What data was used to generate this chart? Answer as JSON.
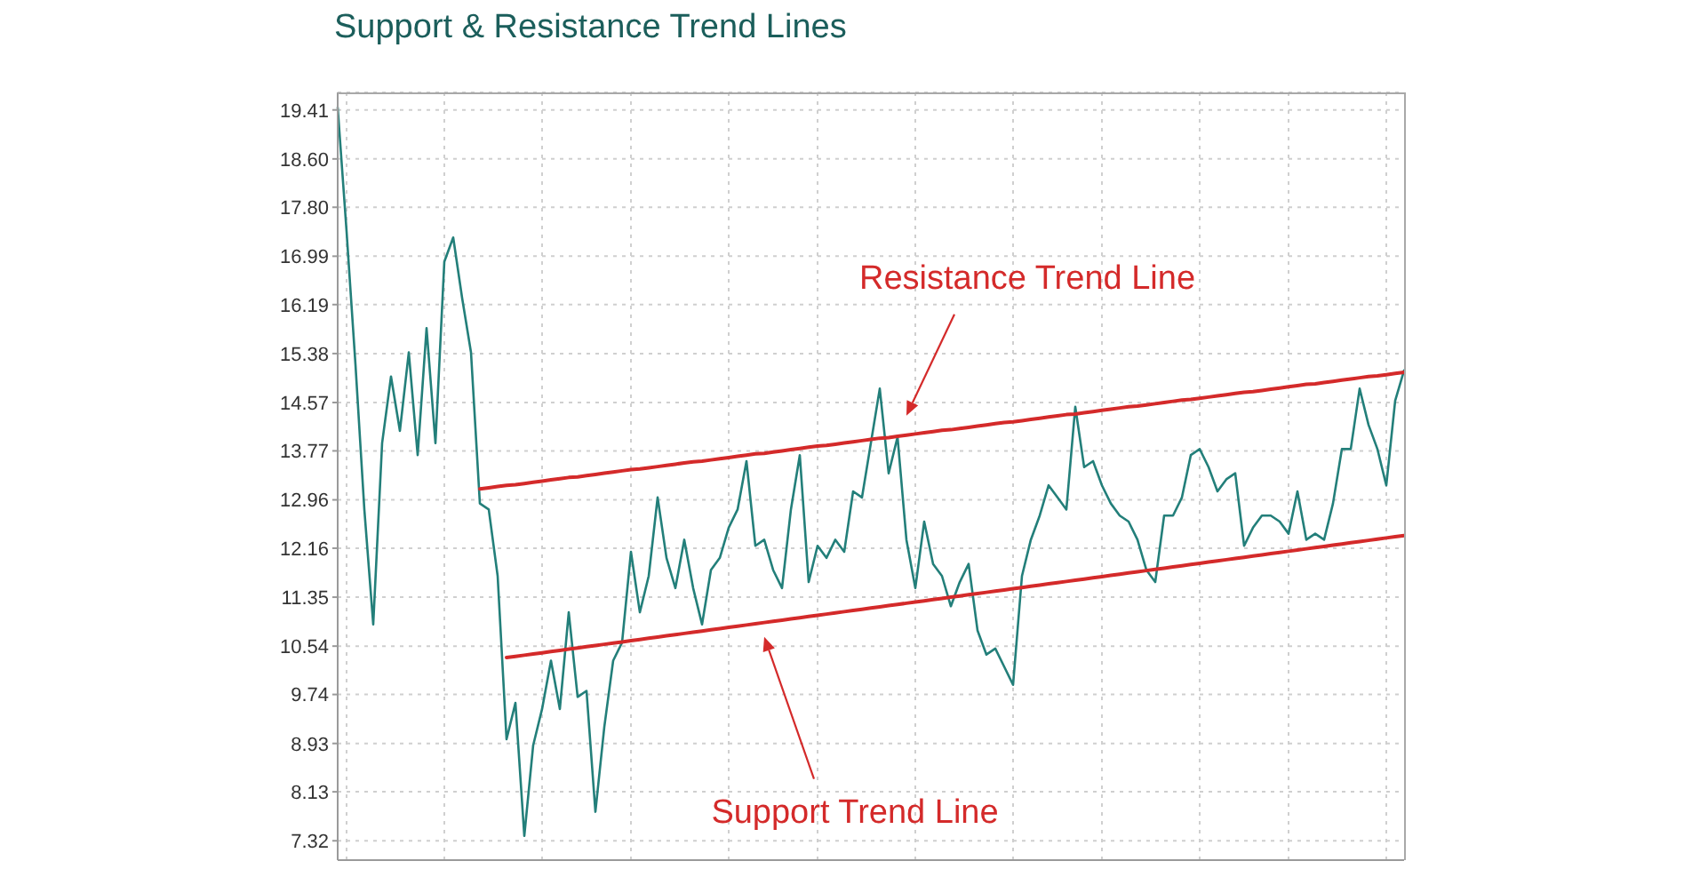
{
  "chart_data": {
    "type": "line",
    "title": "Support & Resistance Trend Lines",
    "categories": [
      null,
      null,
      null,
      null,
      null,
      null,
      null,
      null,
      null,
      null,
      null,
      null,
      null,
      null,
      null,
      null,
      null,
      null,
      null,
      null,
      null,
      null,
      null,
      null,
      null,
      null,
      null,
      null,
      null,
      null,
      null,
      null,
      null,
      null,
      null,
      null,
      null,
      null,
      null,
      null,
      null,
      null,
      null,
      null,
      null,
      null,
      null,
      null,
      null,
      null,
      null,
      null,
      null,
      null,
      null,
      null,
      null,
      null,
      null,
      null,
      null,
      null,
      null,
      null,
      null,
      null,
      null,
      null,
      null,
      null,
      null,
      null,
      null,
      null,
      null,
      null,
      null,
      null,
      null,
      null,
      null,
      null,
      null,
      null,
      null,
      null,
      null,
      null,
      null,
      null,
      null,
      null,
      null,
      null,
      null,
      null,
      null,
      null,
      null,
      null,
      null,
      null,
      null,
      null,
      null,
      null,
      null,
      null,
      null,
      null,
      null,
      null,
      null,
      null,
      null,
      null,
      null,
      null,
      null,
      null,
      null
    ],
    "series": [
      {
        "color": "#237f7a",
        "values": [
          19.45,
          17.4,
          15.2,
          12.8,
          10.9,
          13.9,
          15.0,
          14.1,
          15.4,
          13.7,
          15.8,
          13.9,
          16.9,
          17.3,
          16.3,
          15.4,
          12.9,
          12.8,
          11.7,
          9.0,
          9.6,
          7.4,
          8.9,
          9.5,
          10.3,
          9.5,
          11.1,
          9.7,
          9.8,
          7.8,
          9.2,
          10.3,
          10.6,
          12.1,
          11.1,
          11.7,
          13.0,
          12.0,
          11.5,
          12.3,
          11.5,
          10.9,
          11.8,
          12.0,
          12.5,
          12.8,
          13.6,
          12.2,
          12.3,
          11.8,
          11.5,
          12.8,
          13.7,
          11.6,
          12.2,
          12.0,
          12.3,
          12.1,
          13.1,
          13.0,
          13.9,
          14.8,
          13.4,
          14.0,
          12.3,
          11.5,
          12.6,
          11.9,
          11.7,
          11.2,
          11.6,
          11.9,
          10.8,
          10.4,
          10.5,
          10.2,
          9.9,
          11.7,
          12.3,
          12.7,
          13.2,
          13.0,
          12.8,
          14.5,
          13.5,
          13.6,
          13.2,
          12.9,
          12.7,
          12.6,
          12.3,
          11.8,
          11.6,
          12.7,
          12.7,
          13.0,
          13.7,
          13.8,
          13.5,
          13.1,
          13.3,
          13.4,
          12.2,
          12.5,
          12.7,
          12.7,
          12.6,
          12.4,
          13.1,
          12.3,
          12.4,
          12.3,
          12.9,
          13.8,
          13.8,
          14.8,
          14.2,
          13.8,
          13.2,
          14.6,
          15.1
        ]
      },
      {
        "name": "Resistance Trend Line",
        "color": "#d42a2a",
        "values": [
          null,
          null,
          null,
          null,
          null,
          null,
          null,
          null,
          null,
          null,
          null,
          null,
          null,
          null,
          null,
          null,
          13.14,
          13.16,
          13.18,
          13.2,
          13.21,
          13.23,
          13.25,
          13.27,
          13.29,
          13.31,
          13.33,
          13.34,
          13.36,
          13.38,
          13.4,
          13.42,
          13.44,
          13.46,
          13.47,
          13.49,
          13.51,
          13.53,
          13.55,
          13.57,
          13.59,
          13.6,
          13.62,
          13.64,
          13.66,
          13.68,
          13.7,
          13.72,
          13.73,
          13.75,
          13.77,
          13.79,
          13.81,
          13.83,
          13.85,
          13.86,
          13.88,
          13.9,
          13.92,
          13.94,
          13.96,
          13.98,
          13.99,
          14.01,
          14.03,
          14.05,
          14.07,
          14.09,
          14.11,
          14.12,
          14.14,
          14.16,
          14.18,
          14.2,
          14.22,
          14.24,
          14.25,
          14.27,
          14.29,
          14.31,
          14.33,
          14.35,
          14.37,
          14.38,
          14.4,
          14.42,
          14.44,
          14.46,
          14.48,
          14.5,
          14.51,
          14.53,
          14.55,
          14.57,
          14.59,
          14.61,
          14.62,
          14.64,
          14.66,
          14.68,
          14.7,
          14.72,
          14.74,
          14.75,
          14.77,
          14.79,
          14.81,
          14.83,
          14.85,
          14.87,
          14.88,
          14.9,
          14.92,
          14.94,
          14.96,
          14.98,
          15.0,
          15.01,
          15.03,
          15.05,
          15.07
        ]
      },
      {
        "name": "Support Trend Line",
        "color": "#d42a2a",
        "values": [
          null,
          null,
          null,
          null,
          null,
          null,
          null,
          null,
          null,
          null,
          null,
          null,
          null,
          null,
          null,
          null,
          null,
          null,
          null,
          10.35,
          10.37,
          10.39,
          10.41,
          10.43,
          10.45,
          10.47,
          10.49,
          10.51,
          10.53,
          10.55,
          10.57,
          10.59,
          10.61,
          10.63,
          10.65,
          10.67,
          10.69,
          10.71,
          10.73,
          10.75,
          10.77,
          10.79,
          10.81,
          10.83,
          10.85,
          10.87,
          10.89,
          10.91,
          10.93,
          10.95,
          10.97,
          10.99,
          11.01,
          11.03,
          11.05,
          11.07,
          11.09,
          11.11,
          11.13,
          11.15,
          11.17,
          11.19,
          11.21,
          11.23,
          11.25,
          11.27,
          11.29,
          11.31,
          11.33,
          11.35,
          11.37,
          11.39,
          11.41,
          11.43,
          11.45,
          11.47,
          11.49,
          11.51,
          11.53,
          11.55,
          11.57,
          11.59,
          11.61,
          11.63,
          11.65,
          11.67,
          11.69,
          11.71,
          11.73,
          11.75,
          11.77,
          11.79,
          11.81,
          11.83,
          11.85,
          11.87,
          11.89,
          11.91,
          11.93,
          11.95,
          11.97,
          11.99,
          12.01,
          12.03,
          12.05,
          12.07,
          12.09,
          12.11,
          12.13,
          12.15,
          12.17,
          12.19,
          12.21,
          12.23,
          12.25,
          12.27,
          12.29,
          12.31,
          12.33,
          12.35,
          12.37
        ]
      }
    ],
    "ylim": [
      7.0,
      19.7
    ],
    "yticks": [
      7.32,
      8.13,
      8.93,
      9.74,
      10.54,
      11.35,
      12.16,
      12.96,
      13.77,
      14.57,
      15.38,
      16.19,
      16.99,
      {
        "value": 17.8,
        "label": "17.80"
      },
      {
        "value": 18.6,
        "label": "18.60"
      },
      19.41
    ],
    "grid": true,
    "tick_labels": "y",
    "marker": "none"
  }
}
